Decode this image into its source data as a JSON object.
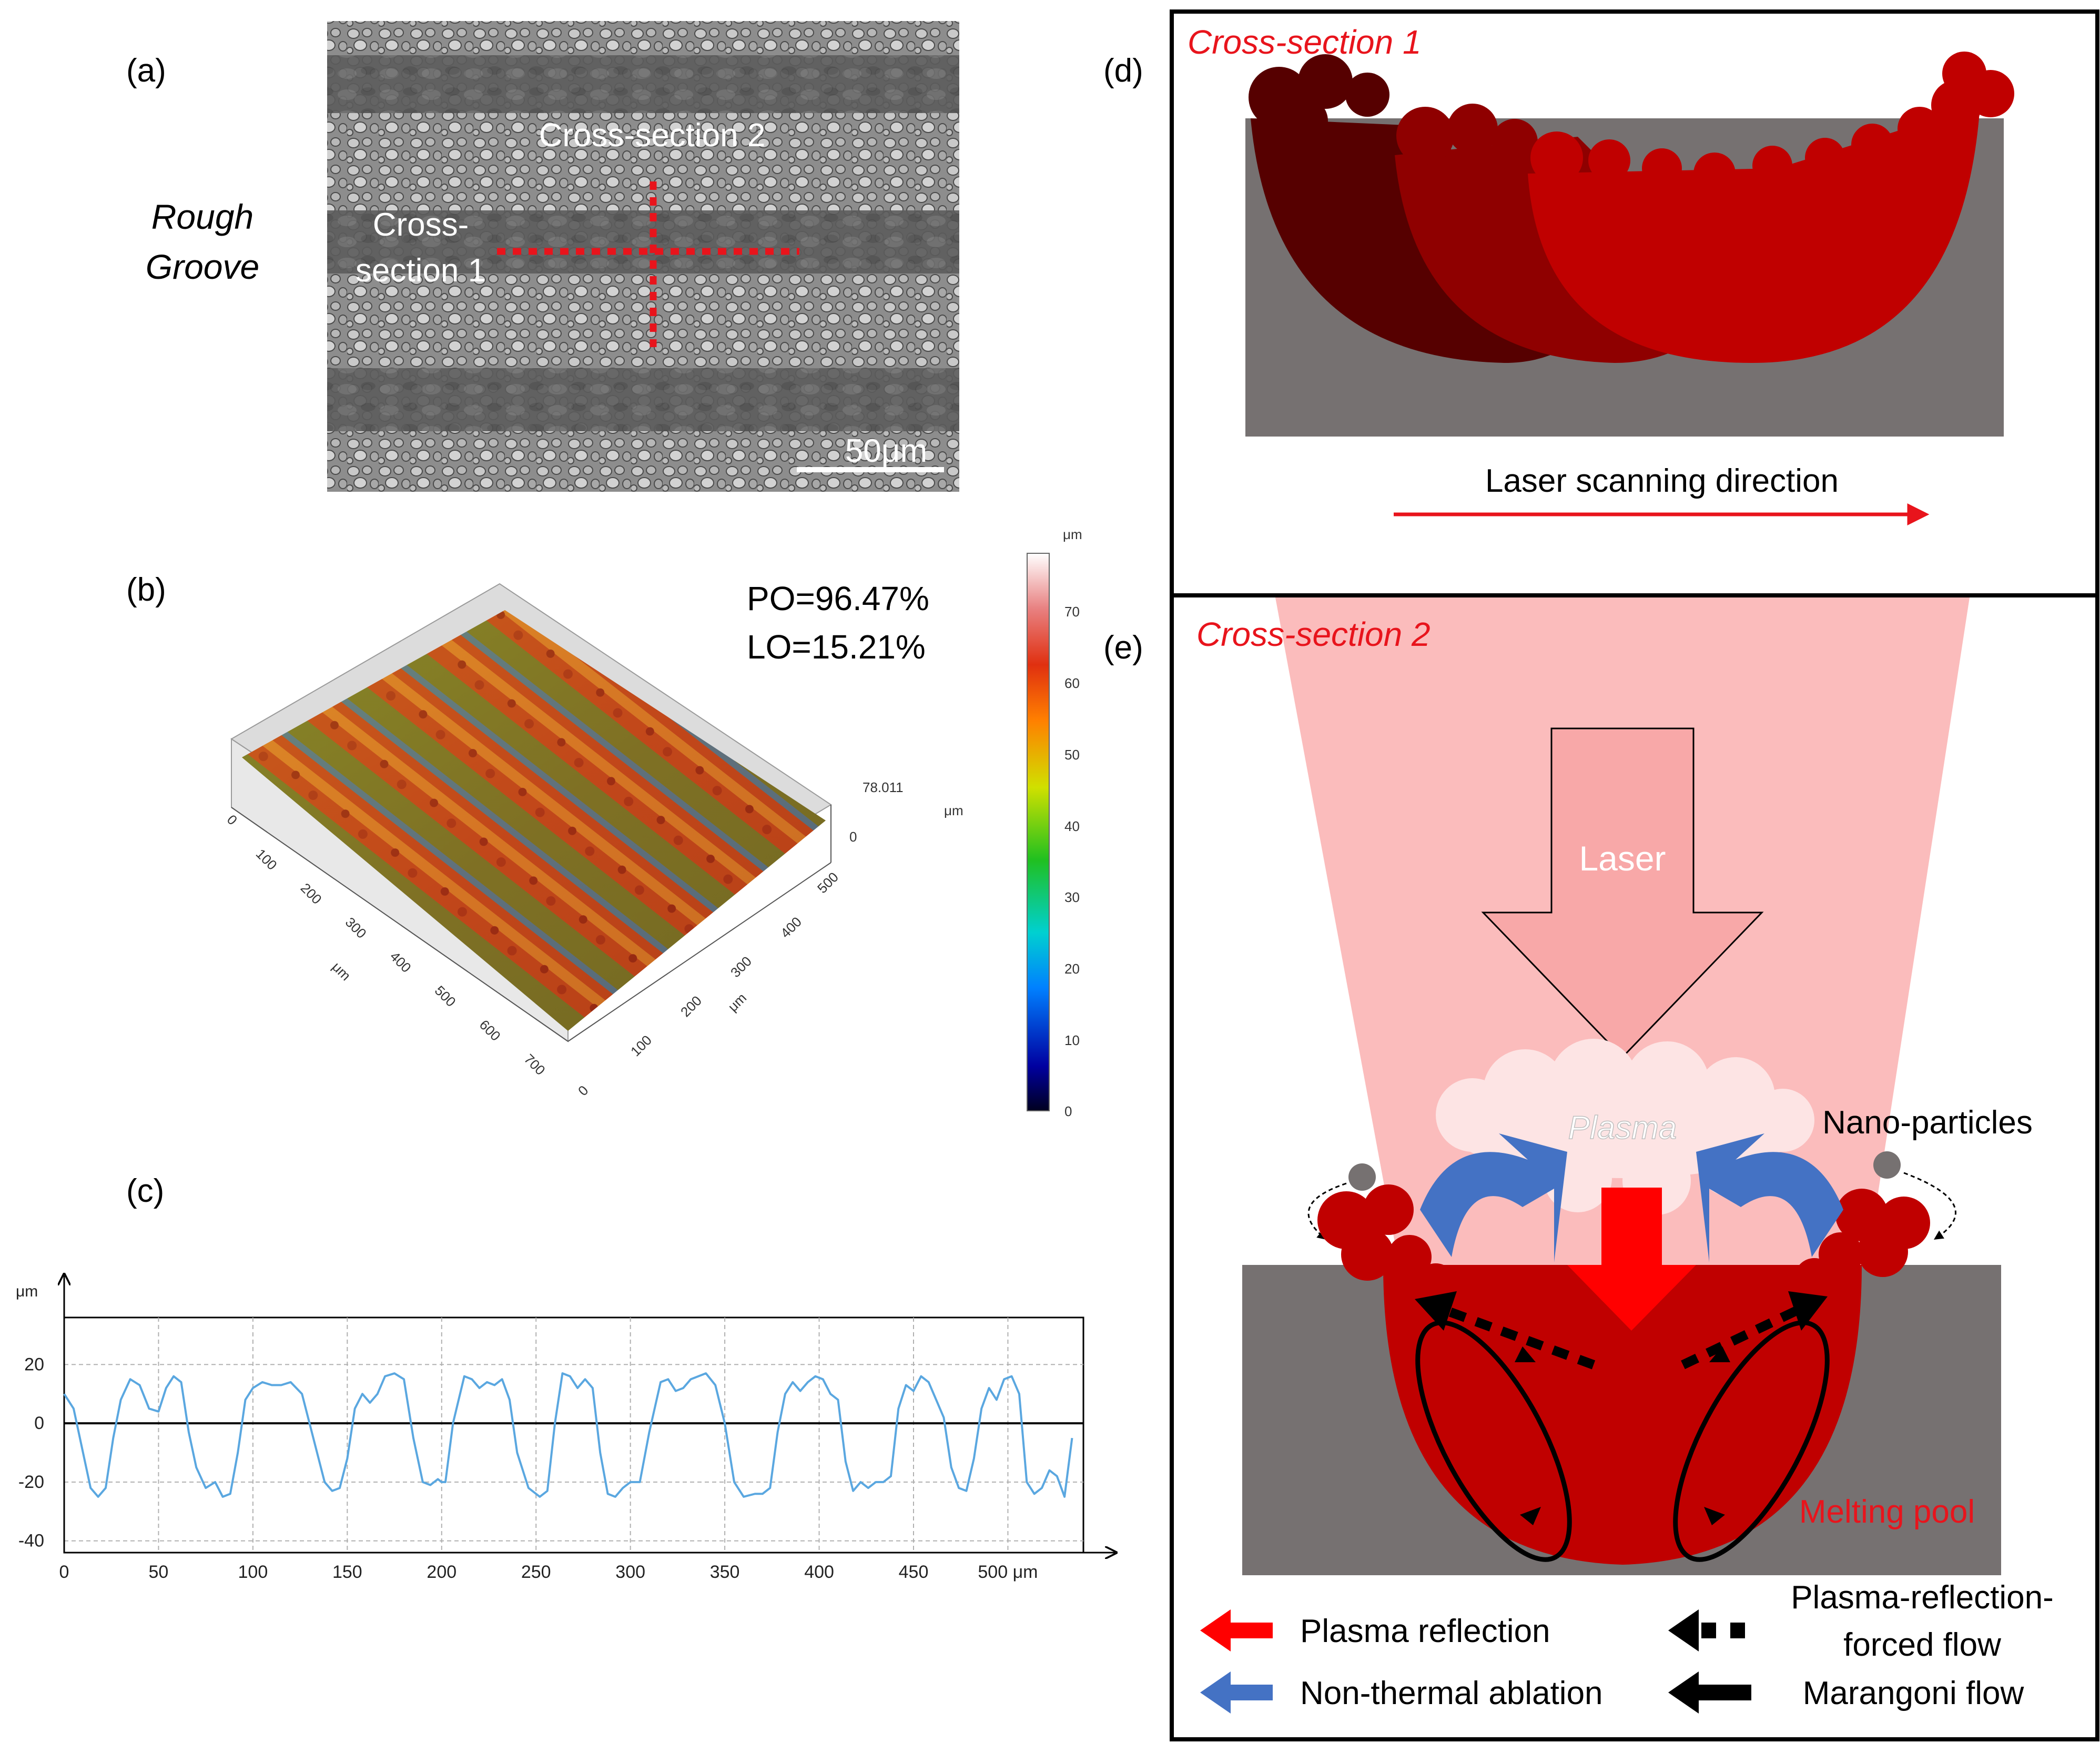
{
  "panels": {
    "a": {
      "label": "(a)",
      "title_line1": "Rough",
      "title_line2": "Groove",
      "cs2_label": "Cross-section 2",
      "cs1_label_line1": "Cross-",
      "cs1_label_line2": "section 1",
      "scale_bar": "50μm"
    },
    "b": {
      "label": "(b)",
      "po": "PO=96.47%",
      "lo": "LO=15.21%",
      "colorbar_unit": "μm",
      "colorbar_ticks": [
        "70",
        "60",
        "50",
        "40",
        "30",
        "20",
        "10",
        "0"
      ],
      "x_ticks": [
        "0",
        "100",
        "200",
        "300",
        "400",
        "500",
        "600",
        "700"
      ],
      "x_unit": "μm",
      "y_ticks": [
        "0",
        "100",
        "200",
        "300",
        "400",
        "500"
      ],
      "y_unit": "μm",
      "z_max": "78.011",
      "z_unit": "μm",
      "z_zero": "0"
    },
    "c": {
      "label": "(c)"
    },
    "d": {
      "label": "(d)",
      "title": "Cross-section 1",
      "arrow_label": "Laser scanning direction"
    },
    "e": {
      "label": "(e)",
      "title": "Cross-section 2",
      "laser": "Laser",
      "plasma": "Plasma",
      "nano": "Nano-particles",
      "pool": "Melting pool",
      "legend": {
        "plasma_reflection": "Plasma reflection",
        "non_thermal": "Non-thermal ablation",
        "forced_flow_line1": "Plasma-reflection-",
        "forced_flow_line2": "forced flow",
        "marangoni": "Marangoni flow"
      }
    }
  },
  "colors": {
    "red_text": "#e8141c",
    "laser_beam": "#fbbcbc",
    "pool": "#c00000",
    "substrate": "#767171",
    "blue_arrow": "#4472c4",
    "profile_line": "#5aa7e0"
  },
  "chart_data": {
    "type": "line",
    "title": "",
    "xlabel": "μm",
    "ylabel": "μm",
    "x_tick_labels": [
      "0",
      "50",
      "100",
      "150",
      "200",
      "250",
      "300",
      "350",
      "400",
      "450",
      "500 μm"
    ],
    "y_tick_labels": [
      "20",
      "0",
      "-20",
      "-40"
    ],
    "xlim": [
      0,
      540
    ],
    "ylim": [
      -44,
      36
    ],
    "grid": true,
    "series": [
      {
        "name": "profile",
        "x": [
          0,
          5,
          10,
          14,
          18,
          22,
          26,
          30,
          35,
          40,
          45,
          50,
          54,
          58,
          62,
          66,
          70,
          75,
          80,
          84,
          88,
          92,
          96,
          100,
          105,
          110,
          115,
          120,
          126,
          132,
          138,
          142,
          146,
          150,
          154,
          158,
          162,
          166,
          170,
          175,
          180,
          185,
          190,
          194,
          198,
          200,
          202,
          206,
          212,
          216,
          220,
          224,
          228,
          232,
          236,
          240,
          246,
          252,
          256,
          260,
          264,
          268,
          272,
          276,
          280,
          284,
          288,
          292,
          296,
          300,
          305,
          310,
          316,
          320,
          324,
          328,
          332,
          336,
          340,
          345,
          350,
          355,
          360,
          366,
          370,
          374,
          378,
          382,
          386,
          390,
          394,
          398,
          402,
          406,
          410,
          414,
          418,
          422,
          426,
          430,
          434,
          438,
          442,
          446,
          450,
          454,
          458,
          462,
          466,
          470,
          474,
          478,
          482,
          486,
          490,
          494,
          498,
          502,
          506,
          510,
          514,
          518,
          522,
          526,
          530,
          534
        ],
        "y": [
          10,
          5,
          -10,
          -22,
          -25,
          -22,
          -5,
          8,
          15,
          13,
          5,
          4,
          12,
          16,
          14,
          -3,
          -15,
          -22,
          -20,
          -25,
          -24,
          -10,
          8,
          12,
          14,
          13,
          13,
          14,
          10,
          -5,
          -20,
          -23,
          -22,
          -12,
          5,
          10,
          7,
          10,
          16,
          17,
          15,
          -5,
          -20,
          -21,
          -19,
          -20,
          -20,
          0,
          16,
          15,
          12,
          14,
          13,
          15,
          8,
          -10,
          -22,
          -25,
          -23,
          0,
          17,
          16,
          12,
          15,
          12,
          -10,
          -24,
          -25,
          -22,
          -20,
          -20,
          -3,
          14,
          15,
          11,
          12,
          15,
          16,
          17,
          13,
          0,
          -20,
          -25,
          -24,
          -24,
          -22,
          -3,
          10,
          14,
          11,
          14,
          16,
          15,
          10,
          8,
          -13,
          -23,
          -20,
          -22,
          -20,
          -20,
          -18,
          5,
          13,
          11,
          16,
          14,
          8,
          2,
          -15,
          -22,
          -23,
          -12,
          5,
          12,
          8,
          15,
          16,
          10,
          -20,
          -24,
          -22,
          -16,
          -18,
          -25,
          -5
        ]
      }
    ]
  }
}
